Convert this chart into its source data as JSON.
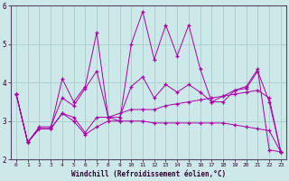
{
  "xlabel": "Windchill (Refroidissement éolien,°C)",
  "xlim": [
    -0.5,
    23.5
  ],
  "ylim": [
    2,
    6
  ],
  "yticks": [
    2,
    3,
    4,
    5,
    6
  ],
  "xticks": [
    0,
    1,
    2,
    3,
    4,
    5,
    6,
    7,
    8,
    9,
    10,
    11,
    12,
    13,
    14,
    15,
    16,
    17,
    18,
    19,
    20,
    21,
    22,
    23
  ],
  "bg_color": "#cce8e8",
  "grid_color": "#aacccc",
  "line_color": "#aa00aa",
  "lines": [
    {
      "x": [
        0,
        1,
        2,
        3,
        4,
        5,
        6,
        7,
        8,
        9,
        10,
        11,
        12,
        13,
        14,
        15,
        16,
        17,
        18,
        19,
        20,
        21,
        22,
        23
      ],
      "y": [
        3.7,
        2.45,
        2.8,
        2.8,
        4.1,
        3.5,
        3.9,
        5.3,
        3.1,
        3.0,
        5.0,
        5.85,
        4.6,
        5.5,
        4.7,
        5.5,
        4.35,
        3.5,
        3.5,
        3.8,
        3.9,
        4.35,
        2.25,
        2.2
      ]
    },
    {
      "x": [
        0,
        1,
        2,
        3,
        4,
        5,
        6,
        7,
        8,
        9,
        10,
        11,
        12,
        13,
        14,
        15,
        16,
        17,
        18,
        19,
        20,
        21,
        22,
        23
      ],
      "y": [
        3.7,
        2.45,
        2.8,
        2.8,
        3.2,
        3.0,
        2.65,
        2.85,
        3.0,
        3.0,
        3.0,
        3.0,
        2.95,
        2.95,
        2.95,
        2.95,
        2.95,
        2.95,
        2.95,
        2.9,
        2.85,
        2.8,
        2.75,
        2.2
      ]
    },
    {
      "x": [
        0,
        1,
        2,
        3,
        4,
        5,
        6,
        7,
        8,
        9,
        10,
        11,
        12,
        13,
        14,
        15,
        16,
        17,
        18,
        19,
        20,
        21,
        22,
        23
      ],
      "y": [
        3.7,
        2.45,
        2.8,
        2.8,
        3.2,
        3.1,
        2.7,
        3.1,
        3.1,
        3.2,
        3.3,
        3.3,
        3.3,
        3.4,
        3.45,
        3.5,
        3.55,
        3.6,
        3.65,
        3.7,
        3.75,
        3.8,
        3.6,
        2.2
      ]
    },
    {
      "x": [
        0,
        1,
        2,
        3,
        4,
        5,
        6,
        7,
        8,
        9,
        10,
        11,
        12,
        13,
        14,
        15,
        16,
        17,
        18,
        19,
        20,
        21,
        22,
        23
      ],
      "y": [
        3.7,
        2.45,
        2.85,
        2.85,
        3.6,
        3.4,
        3.85,
        4.3,
        3.1,
        3.1,
        3.9,
        4.15,
        3.6,
        3.95,
        3.75,
        3.95,
        3.75,
        3.5,
        3.65,
        3.8,
        3.85,
        4.3,
        3.5,
        2.2
      ]
    }
  ]
}
